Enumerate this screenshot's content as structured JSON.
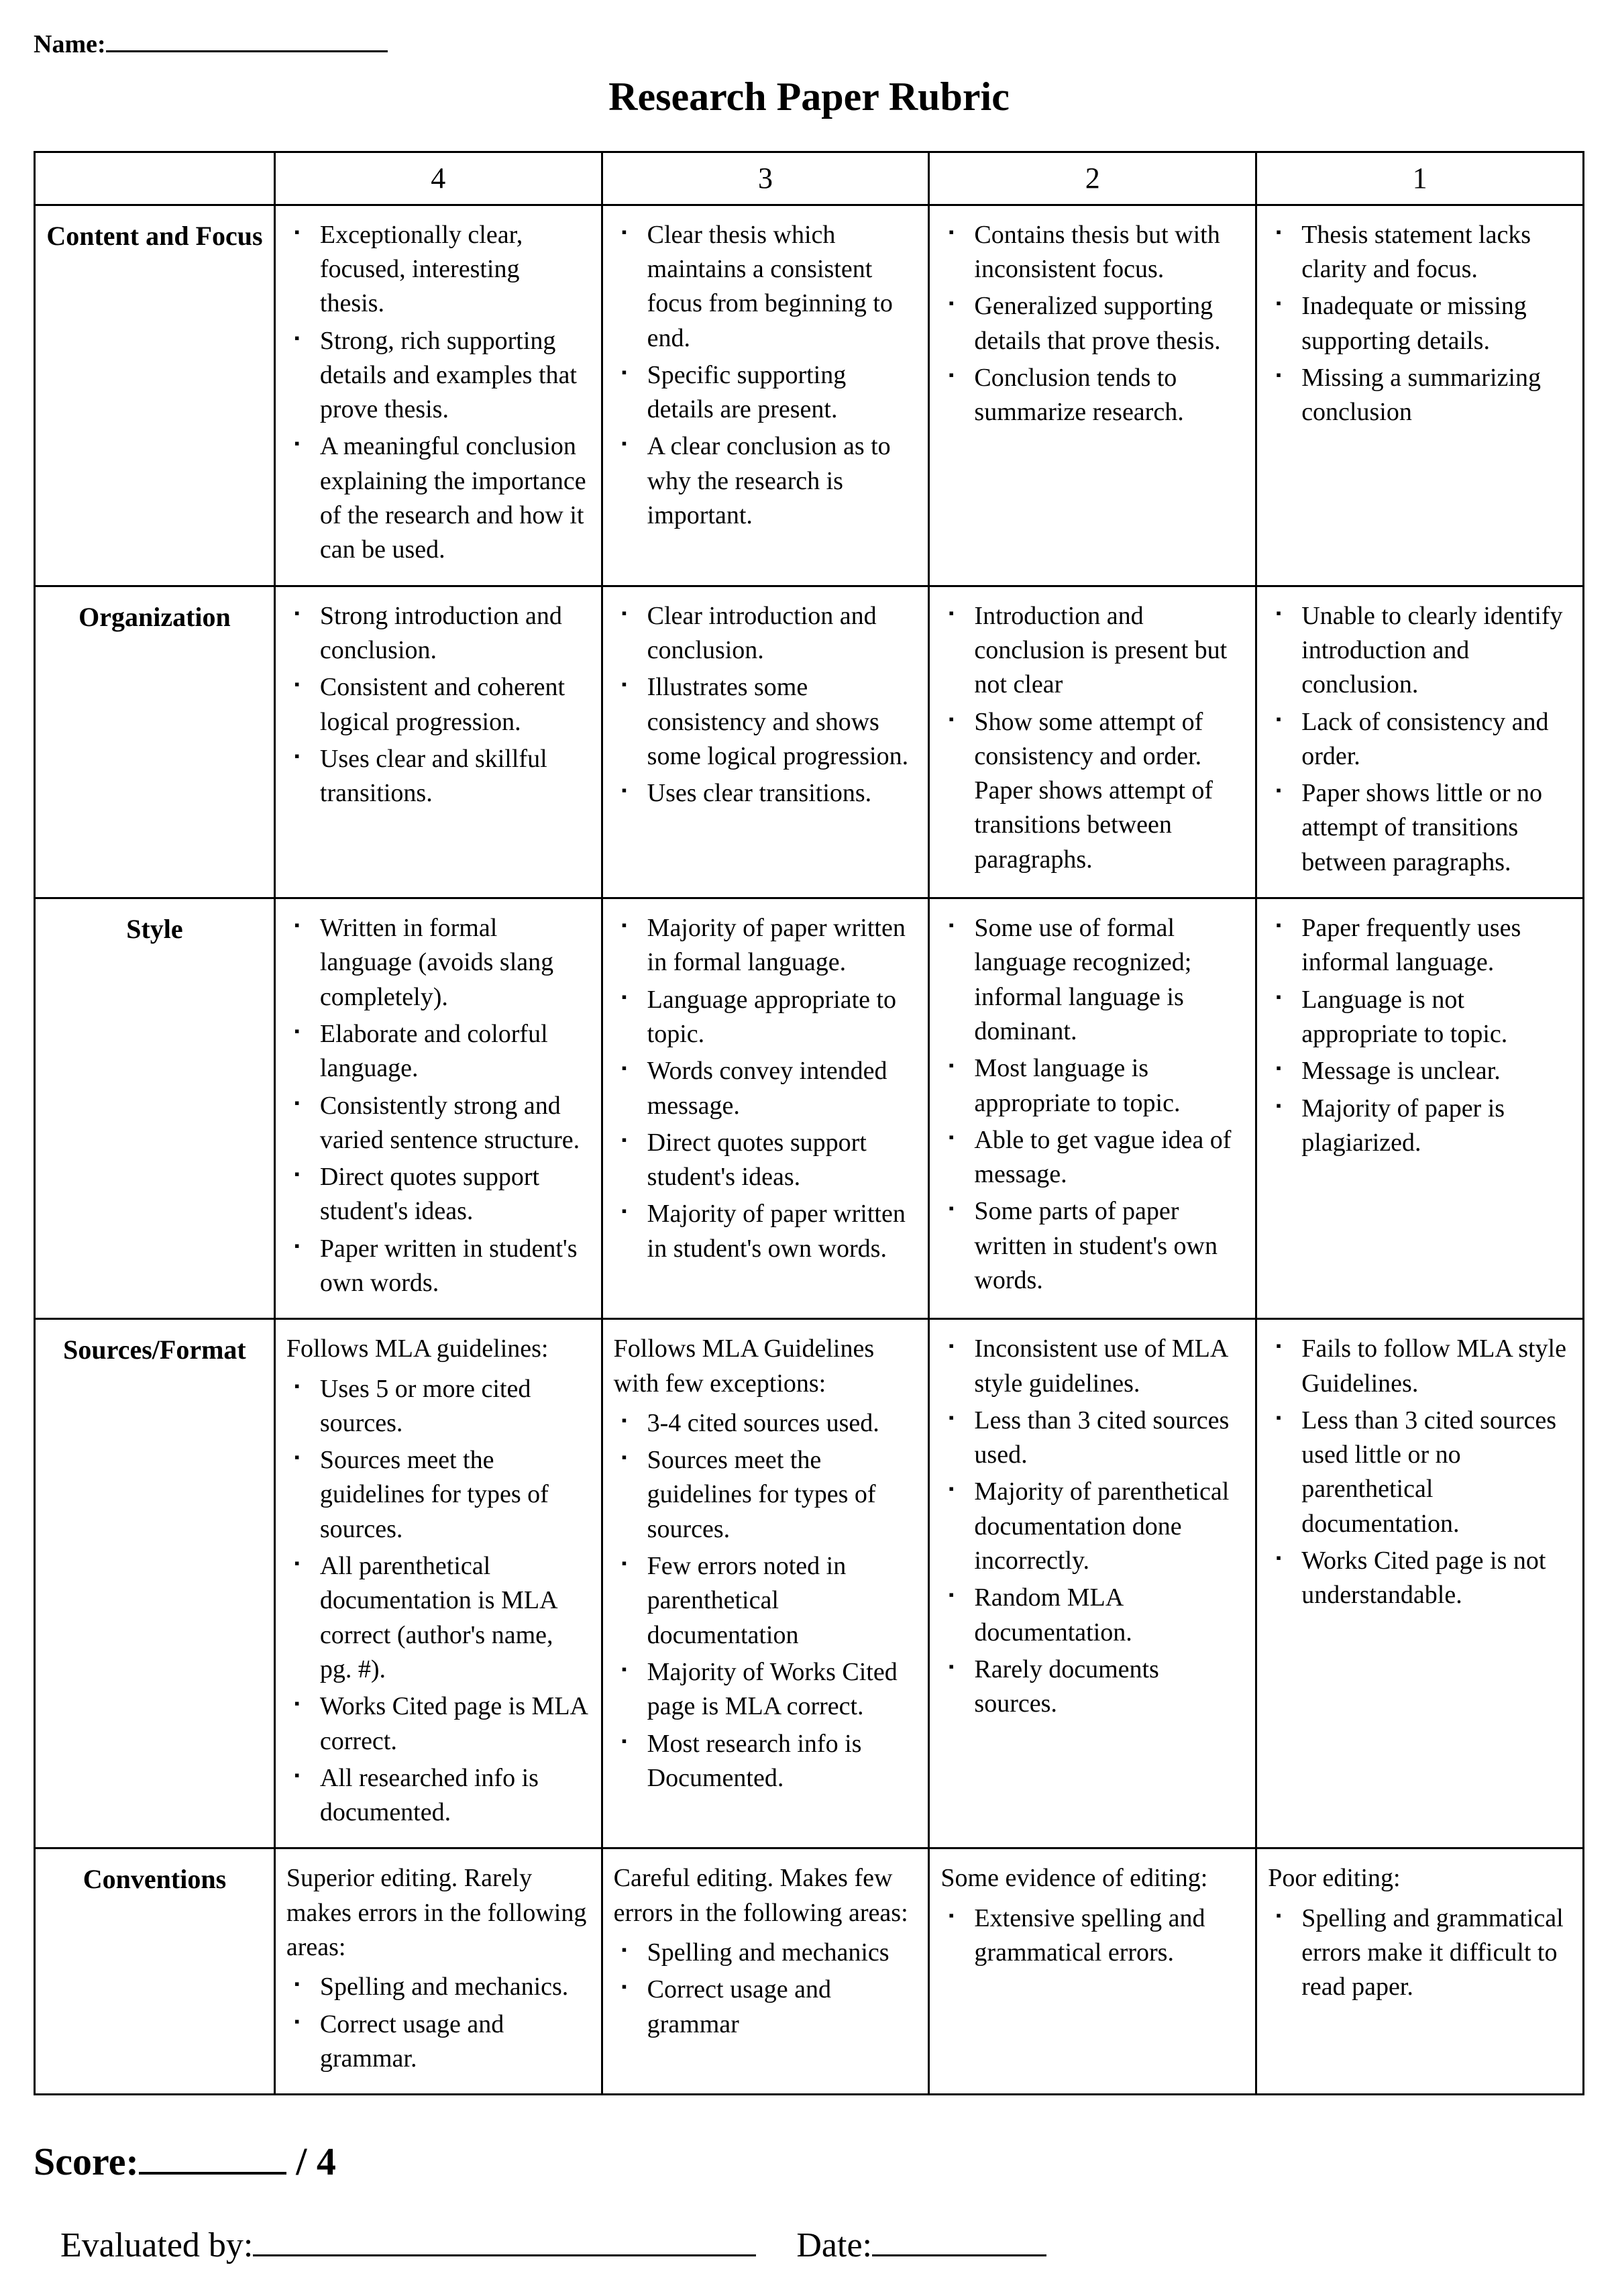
{
  "header": {
    "name_label": "Name:",
    "title": "Research Paper Rubric"
  },
  "levels": [
    "4",
    "3",
    "2",
    "1"
  ],
  "rows": [
    {
      "category": "Content and Focus",
      "cells": [
        {
          "intro": null,
          "points": [
            "Exceptionally clear, focused, interesting thesis.",
            "Strong, rich supporting details and examples that prove thesis.",
            "A meaningful conclusion explaining the importance of the research and how it can be used."
          ]
        },
        {
          "intro": null,
          "points": [
            "Clear thesis which maintains a consistent focus from beginning to end.",
            "Specific supporting details are present.",
            "A clear conclusion as to why the research is important."
          ]
        },
        {
          "intro": null,
          "points": [
            "Contains thesis but with inconsistent focus.",
            "Generalized supporting details that prove thesis.",
            "Conclusion tends to summarize research."
          ]
        },
        {
          "intro": null,
          "points": [
            "Thesis statement lacks clarity and focus.",
            "Inadequate or missing supporting details.",
            "Missing a summarizing conclusion"
          ]
        }
      ]
    },
    {
      "category": "Organization",
      "cells": [
        {
          "intro": null,
          "points": [
            "Strong introduction and conclusion.",
            "Consistent and coherent logical progression.",
            "Uses clear and skillful transitions."
          ]
        },
        {
          "intro": null,
          "points": [
            "Clear introduction and conclusion.",
            "Illustrates some consistency and shows some logical progression.",
            "Uses clear transitions."
          ]
        },
        {
          "intro": null,
          "points": [
            "Introduction and conclusion is present but not clear",
            "Show some attempt of consistency and order. Paper shows attempt of transitions between paragraphs."
          ]
        },
        {
          "intro": null,
          "points": [
            "Unable to clearly identify introduction and conclusion.",
            "Lack of consistency and order.",
            "Paper shows little or no attempt of transitions between paragraphs."
          ]
        }
      ]
    },
    {
      "category": "Style",
      "cells": [
        {
          "intro": null,
          "points": [
            "Written in formal language (avoids slang completely).",
            "Elaborate and colorful language.",
            "Consistently strong and varied sentence structure.",
            "Direct quotes support student's ideas.",
            "Paper written in student's own words."
          ]
        },
        {
          "intro": null,
          "points": [
            "Majority of paper written in formal language.",
            "Language appropriate to topic.",
            "Words convey intended message.",
            "Direct quotes support student's ideas.",
            "Majority of paper written in student's own words."
          ]
        },
        {
          "intro": null,
          "points": [
            "Some use of formal language recognized; informal language is dominant.",
            "Most language is appropriate to topic.",
            "Able to get vague idea of message.",
            "Some parts of paper written in student's own words."
          ]
        },
        {
          "intro": null,
          "points": [
            "Paper frequently uses informal language.",
            "Language is not appropriate to topic.",
            "Message is unclear.",
            "Majority of paper is plagiarized."
          ]
        }
      ]
    },
    {
      "category": "Sources/Format",
      "cells": [
        {
          "intro": "Follows MLA guidelines:",
          "points": [
            "Uses 5 or  more cited sources.",
            "Sources meet the guidelines for  types of sources.",
            "All parenthetical documentation is MLA correct (author's name, pg. #).",
            "Works Cited page is MLA correct.",
            "All researched info is documented."
          ]
        },
        {
          "intro": "Follows MLA Guidelines with few exceptions:",
          "points": [
            "3-4 cited sources used.",
            "Sources meet the guidelines for   types of sources.",
            "Few errors noted in parenthetical documentation",
            "Majority of Works Cited page is MLA correct.",
            "Most research info is Documented."
          ]
        },
        {
          "intro": null,
          "points": [
            "Inconsistent use of MLA style guidelines.",
            "Less than 3 cited sources used.",
            "Majority of parenthetical documentation done incorrectly.",
            "Random MLA documentation.",
            "Rarely documents sources."
          ]
        },
        {
          "intro": null,
          "points": [
            "Fails to follow MLA style Guidelines.",
            "Less than 3 cited sources used little or no parenthetical documentation.",
            "Works Cited page is not understandable."
          ]
        }
      ]
    },
    {
      "category": "Conventions",
      "cells": [
        {
          "intro": "Superior editing.  Rarely makes errors in the following areas:",
          "points": [
            "Spelling and mechanics.",
            "Correct usage and grammar."
          ]
        },
        {
          "intro": "Careful editing.  Makes few errors in the following areas:",
          "points": [
            "Spelling and mechanics",
            "Correct usage and grammar"
          ]
        },
        {
          "intro": "Some evidence of editing:",
          "points": [
            "Extensive spelling and grammatical errors."
          ]
        },
        {
          "intro": "Poor editing:",
          "points": [
            "Spelling and grammatical errors make it difficult to read paper."
          ]
        }
      ]
    }
  ],
  "footer": {
    "score_label": "Score:",
    "score_suffix": "/ 4",
    "evaluated_label": "Evaluated by:",
    "date_label": "Date:"
  }
}
